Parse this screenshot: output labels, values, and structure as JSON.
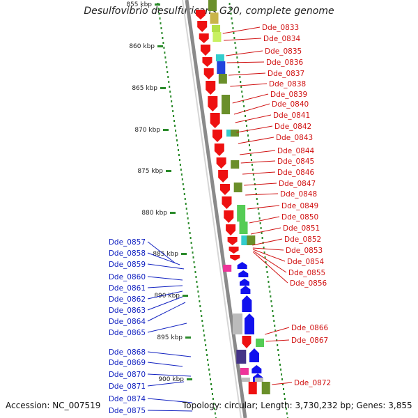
{
  "title": "Desulfovibrio desulfuricans G20, complete genome",
  "footer": {
    "accession": "Accession: NC_007519",
    "summary": "Topology: circular; Length: 3,730,232 bp; Genes: 3,855"
  },
  "scale_ticks": [
    {
      "label": "855 kbp"
    },
    {
      "label": "860 kbp"
    },
    {
      "label": "865 kbp"
    },
    {
      "label": "870 kbp"
    },
    {
      "label": "875 kbp"
    },
    {
      "label": "880 kbp"
    },
    {
      "label": "885 kbp"
    },
    {
      "label": "890 kbp"
    },
    {
      "label": "895 kbp"
    },
    {
      "label": "900 kbp"
    }
  ],
  "right_labels": [
    "Dde_0833",
    "Dde_0834",
    "Dde_0835",
    "Dde_0836",
    "Dde_0837",
    "Dde_0838",
    "Dde_0839",
    "Dde_0840",
    "Dde_0841",
    "Dde_0842",
    "Dde_0843",
    "Dde_0844",
    "Dde_0845",
    "Dde_0846",
    "Dde_0847",
    "Dde_0848",
    "Dde_0849",
    "Dde_0850",
    "Dde_0851",
    "Dde_0852",
    "Dde_0853",
    "Dde_0854",
    "Dde_0855",
    "Dde_0856",
    "Dde_0866",
    "Dde_0867",
    "Dde_0872"
  ],
  "left_labels": [
    "Dde_0857",
    "Dde_0858",
    "Dde_0859",
    "Dde_0860",
    "Dde_0861",
    "Dde_0862",
    "Dde_0863",
    "Dde_0864",
    "Dde_0865",
    "Dde_0868",
    "Dde_0869",
    "Dde_0870",
    "Dde_0871",
    "Dde_0874",
    "Dde_0875"
  ],
  "colors": {
    "forward_strand": "#ee1111",
    "reverse_strand": "#1111ee",
    "right_label": "#d01010",
    "left_label": "#1020c0",
    "tick": "#2a8a2a",
    "backbone": "#888888"
  }
}
